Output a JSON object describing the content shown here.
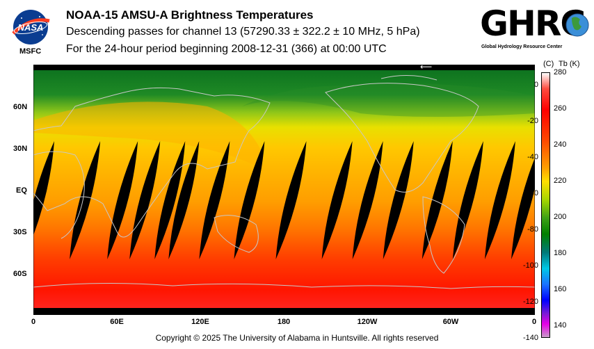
{
  "header": {
    "title": "NOAA-15 AMSU-A Brightness Temperatures",
    "subtitle1": "Descending passes for channel 13 (57290.33 ± 322.2 ± 10 MHz, 5 hPa)",
    "subtitle2": "For the 24-hour period beginning 2008-12-31 (366) at 00:00 UTC"
  },
  "logos": {
    "left_badge": "NASA",
    "left_caption": "MSFC",
    "right_word": "GHRC",
    "right_tagline": "Global Hydrology Resource Center"
  },
  "map": {
    "lat_labels": [
      "60N",
      "30N",
      "EQ",
      "30S",
      "60S"
    ],
    "lon_labels": [
      "0",
      "60E",
      "120E",
      "180",
      "120W",
      "60W",
      "0"
    ],
    "lat_values": [
      60,
      30,
      0,
      -30,
      -60
    ],
    "lon_values": [
      0,
      60,
      120,
      180,
      240,
      300,
      360
    ],
    "swath_gap_centers_lon": [
      4,
      37,
      64,
      80,
      98,
      108,
      130,
      155,
      185,
      218,
      240,
      262,
      290,
      312,
      335,
      354
    ],
    "arrow_glyph": "⟵"
  },
  "colorbar": {
    "header_c": "(C)",
    "header_k": "Tb (K)",
    "celsius_ticks": [
      "0",
      "-20",
      "-40",
      "-60",
      "-80",
      "-100",
      "-120",
      "-140"
    ],
    "kelvin_ticks": [
      "280",
      "260",
      "240",
      "220",
      "200",
      "180",
      "160",
      "140"
    ],
    "kelvin_range": [
      133,
      280
    ]
  },
  "footer": {
    "copyright": "Copyright © 2025 The University of Alabama in Huntsville.  All rights reserved"
  },
  "colors": {
    "background": "#ffffff",
    "polar_cold": "#0a7a20",
    "mid_yellow": "#ffd400",
    "tropical_orange": "#ff9a00",
    "southern_red": "#ff1a00",
    "no_data": "#000000",
    "coastline": "#c0c0c0"
  }
}
